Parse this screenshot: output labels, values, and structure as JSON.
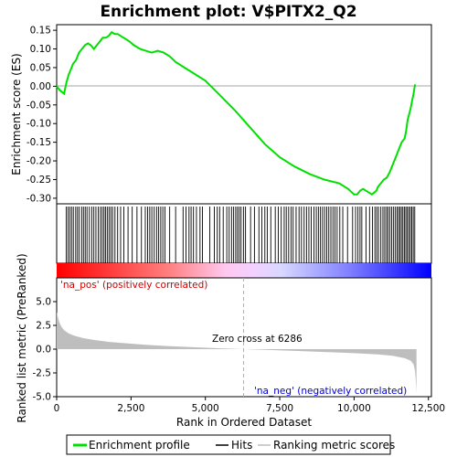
{
  "chart_data": {
    "type": "line",
    "title": "Enrichment plot: V$PITX2_Q2",
    "es_panel": {
      "ylabel": "Enrichment score (ES)",
      "ylim": [
        -0.315,
        0.165
      ],
      "yticks": [
        0.15,
        0.1,
        0.05,
        0.0,
        -0.05,
        -0.1,
        -0.15,
        -0.2,
        -0.25,
        -0.3
      ],
      "ytick_labels": [
        "0.15",
        "0.10",
        "0.05",
        "0.00",
        "-0.05",
        "-0.10",
        "-0.15",
        "-0.20",
        "-0.25",
        "-0.30"
      ],
      "series": {
        "x": [
          0,
          100,
          250,
          330,
          400,
          500,
          550,
          650,
          750,
          850,
          950,
          1050,
          1150,
          1250,
          1350,
          1450,
          1550,
          1650,
          1750,
          1850,
          1950,
          2050,
          2150,
          2250,
          2350,
          2450,
          2600,
          2800,
          3000,
          3200,
          3400,
          3600,
          3800,
          4000,
          4300,
          4600,
          5000,
          5500,
          6000,
          6500,
          7000,
          7500,
          8000,
          8500,
          9000,
          9500,
          9800,
          10000,
          10100,
          10200,
          10300,
          10500,
          10600,
          10750,
          10800,
          10900,
          11000,
          11100,
          11200,
          11300,
          11400,
          11500,
          11600,
          11700,
          11750,
          11800,
          11900,
          11950,
          12000,
          12050
        ],
        "values": [
          0.0,
          -0.01,
          -0.02,
          0.01,
          0.03,
          0.05,
          0.06,
          0.07,
          0.09,
          0.1,
          0.11,
          0.115,
          0.11,
          0.1,
          0.11,
          0.12,
          0.13,
          0.13,
          0.135,
          0.145,
          0.14,
          0.14,
          0.135,
          0.13,
          0.125,
          0.12,
          0.11,
          0.1,
          0.095,
          0.09,
          0.095,
          0.09,
          0.08,
          0.065,
          0.05,
          0.035,
          0.015,
          -0.025,
          -0.065,
          -0.11,
          -0.155,
          -0.19,
          -0.215,
          -0.235,
          -0.25,
          -0.26,
          -0.275,
          -0.29,
          -0.29,
          -0.28,
          -0.275,
          -0.285,
          -0.29,
          -0.28,
          -0.27,
          -0.26,
          -0.25,
          -0.245,
          -0.23,
          -0.21,
          -0.19,
          -0.17,
          -0.15,
          -0.14,
          -0.12,
          -0.09,
          -0.06,
          -0.04,
          -0.02,
          0.005
        ]
      }
    },
    "hits": [
      320,
      380,
      440,
      500,
      560,
      640,
      700,
      760,
      840,
      900,
      960,
      1020,
      1100,
      1180,
      1250,
      1320,
      1400,
      1470,
      1530,
      1590,
      1640,
      1700,
      1760,
      1820,
      1880,
      1960,
      2050,
      2150,
      2260,
      2400,
      2540,
      2700,
      2850,
      2980,
      3060,
      3130,
      3200,
      3280,
      3360,
      3430,
      3500,
      3570,
      3640,
      3800,
      4000,
      4250,
      4350,
      4450,
      4520,
      4600,
      4700,
      4820,
      4900,
      5150,
      5300,
      5400,
      5480,
      5600,
      5720,
      5800,
      5880,
      5950,
      6020,
      6080,
      6140,
      6200,
      6280,
      6350,
      6520,
      6650,
      6800,
      6900,
      7000,
      7080,
      7200,
      7350,
      7450,
      7550,
      7650,
      7720,
      7800,
      7880,
      7950,
      8050,
      8150,
      8230,
      8320,
      8400,
      8480,
      8560,
      8650,
      8730,
      8800,
      8870,
      8940,
      9010,
      9080,
      9150,
      9220,
      9290,
      9360,
      9430,
      9520,
      9620,
      9780,
      9950,
      10050,
      10130,
      10200,
      10260,
      10400,
      10520,
      10620,
      10700,
      10760,
      10820,
      10900,
      10970,
      11030,
      11090,
      11140,
      11200,
      11260,
      11320,
      11380,
      11440,
      11490,
      11540,
      11590,
      11640,
      11690,
      11740,
      11790,
      11840,
      11890,
      11940,
      11990,
      12040
    ],
    "metric_panel": {
      "ylabel": "Ranked list metric (PreRanked)",
      "ylim": [
        -5.0,
        7.5
      ],
      "yticks": [
        5.0,
        2.5,
        0.0,
        -2.5,
        -5.0
      ],
      "ytick_labels": [
        "5.0",
        "2.5",
        "0.0",
        "-2.5",
        "-5.0"
      ],
      "series": {
        "x": [
          0,
          30,
          80,
          150,
          250,
          400,
          600,
          900,
          1300,
          1800,
          2400,
          3000,
          3800,
          4600,
          5400,
          6286,
          7000,
          8000,
          9000,
          10000,
          10800,
          11300,
          11700,
          11900,
          12000,
          12050,
          12080,
          12100
        ],
        "values": [
          3.9,
          3.5,
          2.9,
          2.4,
          2.0,
          1.65,
          1.4,
          1.15,
          0.95,
          0.75,
          0.6,
          0.45,
          0.32,
          0.2,
          0.1,
          0.0,
          -0.08,
          -0.18,
          -0.3,
          -0.42,
          -0.55,
          -0.7,
          -0.95,
          -1.2,
          -1.6,
          -2.3,
          -3.5,
          -4.6
        ]
      }
    },
    "xlabel": "Rank in Ordered Dataset",
    "xlim": [
      0,
      12600
    ],
    "xticks": [
      0,
      2500,
      5000,
      7500,
      10000,
      12500
    ],
    "xtick_labels": [
      "0",
      "2,500",
      "5,000",
      "7,500",
      "10,000",
      "12,500"
    ],
    "zero_cross": 6286,
    "colors": {
      "es_line": "#00e000",
      "hit": "#000000",
      "metric_fill": "#bebebe",
      "pos_color": "#ff0000",
      "neg_color": "#0000ff",
      "zero_line": "#b0b0b0"
    }
  },
  "annotations": {
    "pos_label": "'na_pos' (positively correlated)",
    "neg_label": "'na_neg' (negatively correlated)",
    "zero_cross_label": "Zero cross at 6286"
  },
  "legend": {
    "items": [
      {
        "label": "Enrichment profile",
        "icon": "green-line-icon"
      },
      {
        "label": "Hits",
        "icon": "black-line-icon"
      },
      {
        "label": "Ranking metric scores",
        "icon": "gray-line-icon"
      }
    ]
  }
}
